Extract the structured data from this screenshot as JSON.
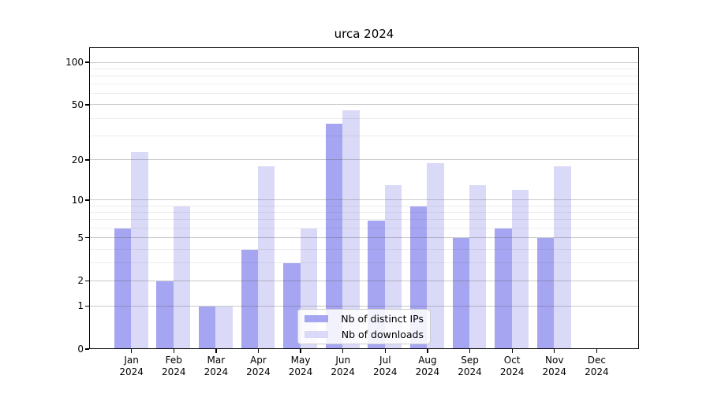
{
  "chart_data": {
    "type": "bar",
    "title": "urca 2024",
    "categories": [
      "Jan 2024",
      "Feb 2024",
      "Mar 2024",
      "Apr 2024",
      "May 2024",
      "Jun 2024",
      "Jul 2024",
      "Aug 2024",
      "Sep 2024",
      "Oct 2024",
      "Nov 2024",
      "Dec 2024"
    ],
    "x_tick_lines": [
      [
        "Jan",
        "2024"
      ],
      [
        "Feb",
        "2024"
      ],
      [
        "Mar",
        "2024"
      ],
      [
        "Apr",
        "2024"
      ],
      [
        "May",
        "2024"
      ],
      [
        "Jun",
        "2024"
      ],
      [
        "Jul",
        "2024"
      ],
      [
        "Aug",
        "2024"
      ],
      [
        "Sep",
        "2024"
      ],
      [
        "Oct",
        "2024"
      ],
      [
        "Nov",
        "2024"
      ],
      [
        "Dec",
        "2024"
      ]
    ],
    "series": [
      {
        "name": "Nb of distinct IPs",
        "color": "#a5a5f1",
        "values": [
          6,
          2,
          1,
          4,
          3,
          37,
          7,
          9,
          5,
          6,
          5,
          0
        ]
      },
      {
        "name": "Nb of downloads",
        "color": "#dadaf8",
        "values": [
          23,
          9,
          1,
          18,
          6,
          46,
          13,
          19,
          13,
          12,
          18,
          0
        ]
      }
    ],
    "yscale": "log1p",
    "yticks": [
      0,
      1,
      2,
      5,
      10,
      20,
      50,
      100
    ],
    "yticks_minor": [
      3,
      4,
      6,
      7,
      8,
      9,
      30,
      40,
      60,
      70,
      80,
      90
    ],
    "ylim": [
      0,
      127
    ],
    "xlabel": "",
    "ylabel": "",
    "grid": true,
    "legend_position": "lower-center",
    "colors": {
      "background": "#ffffff",
      "spine": "#000000",
      "grid_major": "#c9c9c9",
      "grid_minor": "#ececec",
      "legend_border": "#cccccc",
      "text": "#000000"
    }
  }
}
